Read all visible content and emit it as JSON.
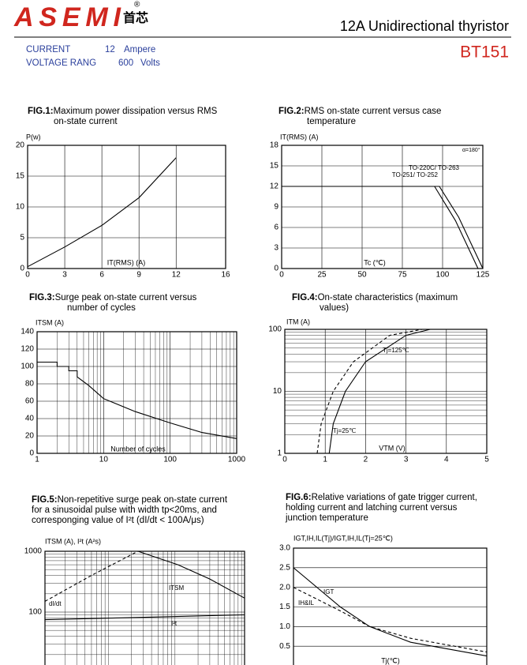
{
  "header": {
    "logo": "ASEMI",
    "logo_cn": "首芯",
    "registered": "®",
    "title": "12A Unidirectional thyristor",
    "part": "BT151",
    "specs": [
      {
        "label": "CURRENT",
        "value": 12,
        "unit": "Ampere"
      },
      {
        "label": "VOLTAGE RANG",
        "value": 600,
        "unit": "Volts"
      }
    ]
  },
  "chart_data": [
    {
      "type": "line",
      "fig": "FIG.1:",
      "title": [
        "Maximum power dissipation versus RMS",
        "on-state current"
      ],
      "ylabel": "P(w)",
      "xlabel": "IT(RMS) (A)",
      "xlim": [
        0,
        16
      ],
      "ylim": [
        0,
        20
      ],
      "xticks": [
        0,
        3,
        6,
        9,
        12,
        16
      ],
      "yticks": [
        0,
        5,
        10,
        15,
        20
      ],
      "grid": true,
      "series": [
        {
          "color": "#000000",
          "x": [
            0,
            3,
            6,
            9,
            12
          ],
          "values": [
            0.3,
            3.5,
            7,
            11.5,
            18
          ]
        }
      ]
    },
    {
      "type": "line",
      "fig": "FIG.2:",
      "title": [
        "RMS on-state current versus case",
        "temperature"
      ],
      "ylabel": "IT(RMS) (A)",
      "xlabel": "Tc (℃)",
      "annotation": "α=180°",
      "xlim": [
        0,
        125
      ],
      "ylim": [
        0,
        18
      ],
      "xticks": [
        0,
        25,
        50,
        75,
        100,
        125
      ],
      "yticks": [
        0,
        3,
        6,
        9,
        12,
        15,
        18
      ],
      "grid": true,
      "series": [
        {
          "name": "TO-220C/ TO-263",
          "color": "#000000",
          "x": [
            0,
            98,
            110,
            125
          ],
          "values": [
            12,
            12,
            7.5,
            0
          ]
        },
        {
          "name": "TO-251/ TO-252",
          "color": "#000000",
          "x": [
            0,
            95,
            108,
            122
          ],
          "values": [
            12,
            12,
            7,
            0
          ]
        }
      ]
    },
    {
      "type": "line",
      "fig": "FIG.3:",
      "title": [
        "Surge peak on-state current versus",
        "number of cycles"
      ],
      "ylabel": "ITSM (A)",
      "xlabel": "Number of cycles",
      "xlog": true,
      "xlim": [
        1,
        1000
      ],
      "ylim": [
        0,
        140
      ],
      "xticks": [
        1,
        10,
        100,
        1000
      ],
      "yticks": [
        0,
        20,
        40,
        60,
        80,
        100,
        120,
        140
      ],
      "grid": true,
      "series": [
        {
          "color": "#000000",
          "x": [
            1,
            2,
            2,
            3,
            3,
            4,
            4,
            6,
            10,
            30,
            100,
            300,
            1000
          ],
          "values": [
            105,
            105,
            100,
            100,
            95,
            95,
            88,
            78,
            63,
            48,
            35,
            24,
            17
          ]
        }
      ]
    },
    {
      "type": "line",
      "fig": "FIG.4:",
      "title": [
        "On-state characteristics (maximum",
        "values)"
      ],
      "ylabel": "ITM (A)",
      "xlabel": "VTM (V)",
      "ylog": true,
      "xlim": [
        0,
        5
      ],
      "ylim": [
        1,
        100
      ],
      "xticks": [
        0,
        1,
        2,
        3,
        4,
        5
      ],
      "yticks": [
        1,
        10,
        100
      ],
      "grid": true,
      "series": [
        {
          "name": "Tj=125℃",
          "color": "#000000",
          "dash": true,
          "x": [
            0.8,
            0.9,
            1.2,
            1.7,
            2.6,
            3.4
          ],
          "values": [
            1,
            3,
            10,
            30,
            80,
            100
          ]
        },
        {
          "name": "Tj=25℃",
          "color": "#000000",
          "x": [
            1.1,
            1.2,
            1.5,
            2,
            3,
            3.6
          ],
          "values": [
            1,
            3,
            10,
            30,
            80,
            100
          ]
        }
      ]
    },
    {
      "type": "line",
      "fig": "FIG.5:",
      "title": [
        "Non-repetitive surge peak on-state current",
        "for a sinusoidal pulse with width tp<20ms, and",
        "corresponging value of I²t (dI/dt < 100A/μs)"
      ],
      "ylabel": "ITSM (A), I²t (A²s)",
      "xlog": true,
      "ylog": true,
      "xlim": [
        0.01,
        10
      ],
      "ylim": [
        10,
        1000
      ],
      "yticks": [
        100,
        1000
      ],
      "grid": true,
      "series": [
        {
          "name": "dI/dt",
          "color": "#000000",
          "dash": true,
          "x": [
            0.01,
            0.05,
            0.25
          ],
          "values": [
            150,
            400,
            1000
          ]
        },
        {
          "name": "ITSM",
          "color": "#000000",
          "x": [
            0.25,
            1,
            3,
            10
          ],
          "values": [
            1000,
            600,
            350,
            170
          ]
        },
        {
          "name": "I²t",
          "color": "#000000",
          "x": [
            0.01,
            10
          ],
          "values": [
            75,
            90
          ]
        }
      ]
    },
    {
      "type": "line",
      "fig": "FIG.6:",
      "title": [
        "Relative variations of gate trigger current,",
        "holding current and latching current versus",
        "junction temperature"
      ],
      "ylabel": "IGT,IH,IL(Tj)/IGT,IH,IL(Tj=25℃)",
      "xlabel": "Tj(℃)",
      "xlim": [
        -40,
        125
      ],
      "ylim": [
        0,
        3
      ],
      "yticks": [
        0.5,
        {
          "value": 1,
          "label": "1.0"
        },
        1.5,
        {
          "value": 2,
          "label": "2.0"
        },
        2.5,
        {
          "value": 3,
          "label": "3.0"
        }
      ],
      "grid": true,
      "series": [
        {
          "name": "IGT",
          "color": "#000000",
          "x": [
            -40,
            0,
            25,
            60,
            125
          ],
          "values": [
            2.5,
            1.5,
            1,
            0.6,
            0.25
          ]
        },
        {
          "name": "IH&IL",
          "color": "#000000",
          "dash": true,
          "x": [
            -40,
            0,
            25,
            60,
            125
          ],
          "values": [
            2,
            1.4,
            1,
            0.7,
            0.35
          ]
        }
      ]
    }
  ]
}
